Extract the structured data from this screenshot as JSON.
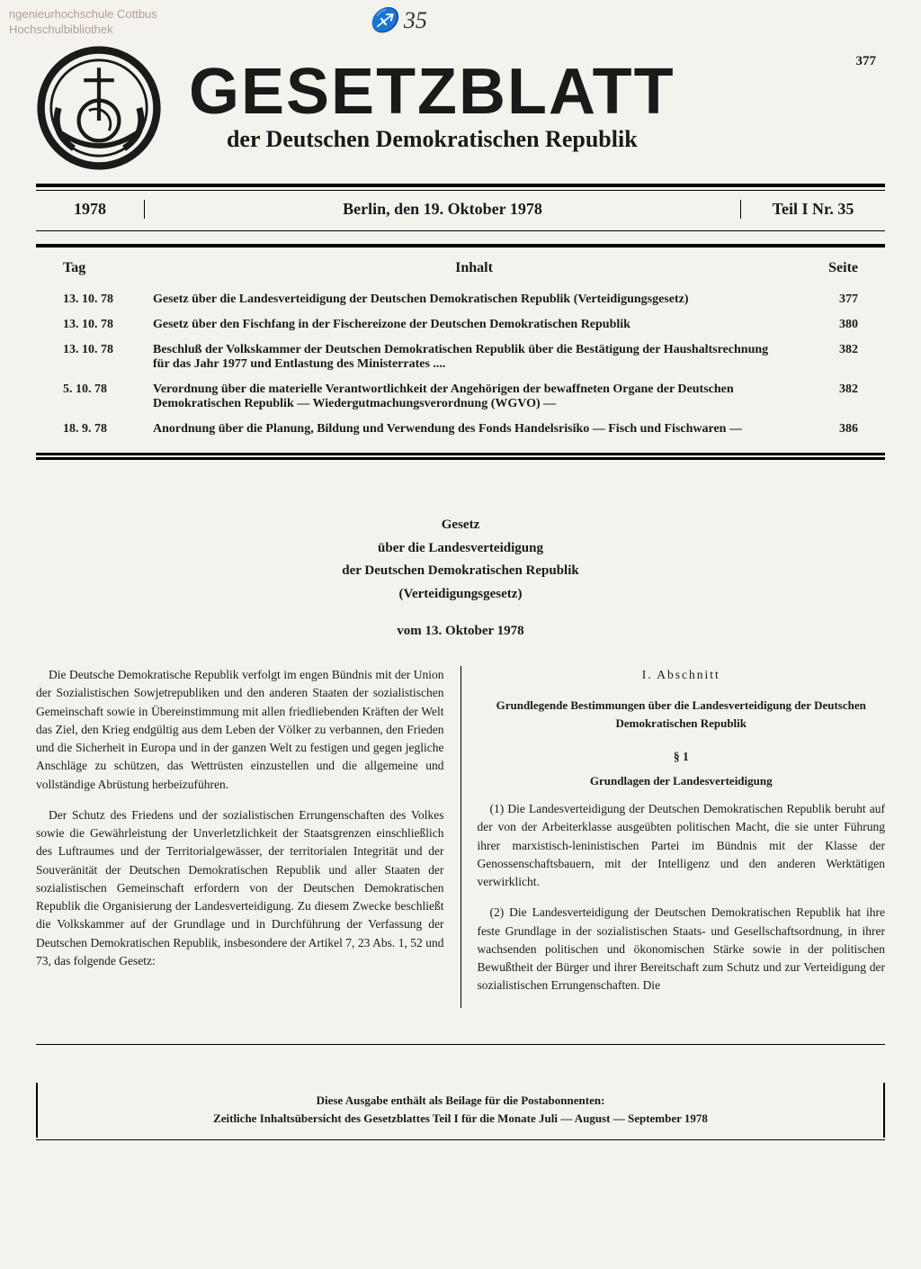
{
  "stamp": {
    "line1": "ngenieurhochschule Cottbus",
    "line2": "Hochschulbibliothek"
  },
  "handwritten": "♐ 35",
  "page_number": "377",
  "masthead": {
    "title": "GESETZBLATT",
    "subtitle": "der Deutschen Demokratischen Republik"
  },
  "issue": {
    "year": "1978",
    "place_date": "Berlin, den 19. Oktober 1978",
    "part": "Teil I Nr. 35"
  },
  "toc": {
    "head_day": "Tag",
    "head_content": "Inhalt",
    "head_page": "Seite",
    "rows": [
      {
        "date": "13. 10. 78",
        "title": "Gesetz über die Landesverteidigung der Deutschen Demokratischen Republik (Verteidigungsgesetz)",
        "page": "377"
      },
      {
        "date": "13. 10. 78",
        "title": "Gesetz über den Fischfang in der Fischereizone der Deutschen Demokratischen Republik",
        "page": "380"
      },
      {
        "date": "13. 10. 78",
        "title": "Beschluß der Volkskammer der Deutschen Demokratischen Republik über die Bestätigung der Haushaltsrechnung für das Jahr 1977 und Entlastung des Ministerrates ....",
        "page": "382"
      },
      {
        "date": "5. 10. 78",
        "title": "Verordnung über die materielle Verantwortlichkeit der Angehörigen der bewaffneten Organe der Deutschen Demokratischen Republik — Wiedergutmachungsverordnung (WGVO) —",
        "page": "382"
      },
      {
        "date": "18. 9. 78",
        "title": "Anordnung über die Planung, Bildung und Verwendung des Fonds Handelsrisiko — Fisch und Fischwaren —",
        "page": "386"
      }
    ]
  },
  "law": {
    "h1": "Gesetz",
    "h2": "über die Landesverteidigung",
    "h3": "der Deutschen Demokratischen Republik",
    "h4": "(Verteidigungsgesetz)",
    "date": "vom 13. Oktober 1978",
    "preamble_p1": "Die Deutsche Demokratische Republik verfolgt im engen Bündnis mit der Union der Sozialistischen Sowjetrepubliken und den anderen Staaten der sozialistischen Gemeinschaft sowie in Übereinstimmung mit allen friedliebenden Kräften der Welt das Ziel, den Krieg endgültig aus dem Leben der Völker zu verbannen, den Frieden und die Sicherheit in Europa und in der ganzen Welt zu festigen und gegen jegliche Anschläge zu schützen, das Wettrüsten einzustellen und die allgemeine und vollständige Abrüstung herbeizuführen.",
    "preamble_p2": "Der Schutz des Friedens und der sozialistischen Errungenschaften des Volkes sowie die Gewährleistung der Unverletzlichkeit der Staatsgrenzen einschließlich des Luftraumes und der Territorialgewässer, der territorialen Integrität und der Souveränität der Deutschen Demokratischen Republik und aller Staaten der sozialistischen Gemeinschaft erfordern von der Deutschen Demokratischen Republik die Organisierung der Landesverteidigung. Zu diesem Zwecke beschließt die Volkskammer auf der Grundlage und in Durchführung der Verfassung der Deutschen Demokratischen Republik, insbesondere der Artikel 7, 23 Abs. 1, 52 und 73, das folgende Gesetz:",
    "section_head": "I. Abschnitt",
    "section_sub": "Grundlegende Bestimmungen über die Landesverteidigung der Deutschen Demokratischen Republik",
    "para_num": "§ 1",
    "para_title": "Grundlagen der Landesverteidigung",
    "para1": "(1) Die Landesverteidigung der Deutschen Demokratischen Republik beruht auf der von der Arbeiterklasse ausgeübten politischen Macht, die sie unter Führung ihrer marxistisch-leninistischen Partei im Bündnis mit der Klasse der Genossenschaftsbauern, mit der Intelligenz und den anderen Werktätigen verwirklicht.",
    "para2": "(2) Die Landesverteidigung der Deutschen Demokratischen Republik hat ihre feste Grundlage in der sozialistischen Staats- und Gesellschaftsordnung, in ihrer wachsenden politischen und ökonomischen Stärke sowie in der politischen Bewußtheit der Bürger und ihrer Bereitschaft zum Schutz und zur Verteidigung der sozialistischen Errungenschaften. Die"
  },
  "footer": {
    "line1": "Diese Ausgabe enthält als Beilage für die Postabonnenten:",
    "line2": "Zeitliche Inhaltsübersicht des Gesetzblattes Teil I für die Monate Juli — August — September 1978"
  }
}
